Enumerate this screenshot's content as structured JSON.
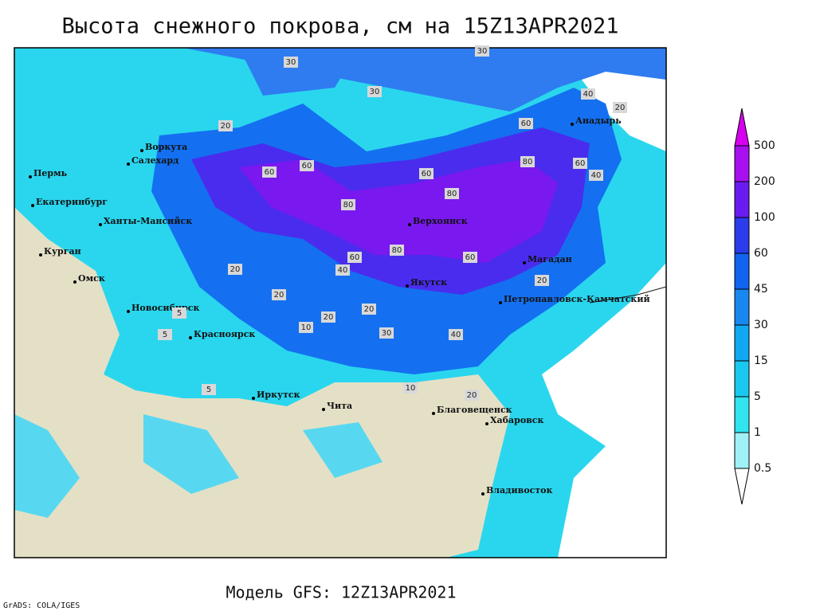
{
  "title": "Высота снежного покрова, см на 15Z13APR2021",
  "footer": "Модель GFS: 12Z13APR2021",
  "credit": "GrADS: COLA/IGES",
  "legend": {
    "levels": [
      0.5,
      1,
      5,
      15,
      30,
      45,
      60,
      100,
      200,
      500
    ],
    "colors": [
      "#ffffff",
      "#a0f0f8",
      "#30e4f0",
      "#18c8f0",
      "#10a8f0",
      "#1888f0",
      "#1064f0",
      "#2a3cec",
      "#6a1cf0",
      "#a810f0",
      "#d800f0"
    ]
  },
  "cities": [
    "Воркута",
    "Салехард",
    "Пермь",
    "Екатеринбург",
    "Ханты-Мансийск",
    "Курган",
    "Омск",
    "Новосибирск",
    "Красноярск",
    "Иркутск",
    "Чита",
    "Верхоянск",
    "Якутск",
    "Магадан",
    "Анадырь",
    "Петропавловск-Камчатский",
    "Благовещенск",
    "Хабаровск",
    "Владивосток"
  ],
  "contour_labels": [
    "30",
    "30",
    "30",
    "20",
    "40",
    "20",
    "60",
    "60",
    "80",
    "60",
    "80",
    "80",
    "60",
    "60",
    "40",
    "20",
    "20",
    "20",
    "10",
    "30",
    "40",
    "20",
    "10",
    "5",
    "5",
    "5",
    "20",
    "60",
    "40",
    "20",
    "60",
    "80"
  ]
}
